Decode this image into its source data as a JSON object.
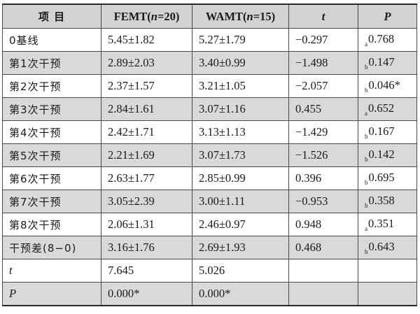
{
  "table": {
    "header": {
      "item": "项 目",
      "femt_prefix": "FEMT(",
      "femt_n": "n",
      "femt_suffix": "=20)",
      "wamt_prefix": "WAMT(",
      "wamt_n": "n",
      "wamt_suffix": "=15)",
      "t": "t",
      "p": "P"
    },
    "rows": [
      {
        "label": "0基线",
        "femt": "5.45±1.82",
        "wamt": "5.27±1.79",
        "t": "−0.297",
        "mark": "a",
        "p": "0.768",
        "shade": false
      },
      {
        "label": "第1次干预",
        "femt": "2.89±2.03",
        "wamt": "3.40±0.99",
        "t": "−1.498",
        "mark": "b",
        "p": "0.147",
        "shade": true
      },
      {
        "label": "第2次干预",
        "femt": "2.37±1.57",
        "wamt": "3.21±1.05",
        "t": "−2.057",
        "mark": "b",
        "p": "0.046*",
        "shade": false
      },
      {
        "label": "第3次干预",
        "femt": "2.84±1.61",
        "wamt": "3.07±1.16",
        "t": "0.455",
        "mark": "a",
        "p": "0.652",
        "shade": true
      },
      {
        "label": "第4次干预",
        "femt": "2.42±1.71",
        "wamt": "3.13±1.13",
        "t": "−1.429",
        "mark": "b",
        "p": "0.167",
        "shade": false
      },
      {
        "label": "第5次干预",
        "femt": "2.21±1.69",
        "wamt": "3.07±1.73",
        "t": "−1.526",
        "mark": "b",
        "p": "0.142",
        "shade": true
      },
      {
        "label": "第6次干预",
        "femt": "2.63±1.77",
        "wamt": "2.85±0.99",
        "t": "0.396",
        "mark": "b",
        "p": "0.695",
        "shade": false
      },
      {
        "label": "第7次干预",
        "femt": "3.05±2.39",
        "wamt": "3.00±1.11",
        "t": "−0.953",
        "mark": "b",
        "p": "0.358",
        "shade": true
      },
      {
        "label": "第8次干预",
        "femt": "2.06±1.31",
        "wamt": "2.46±0.97",
        "t": "0.948",
        "mark": "a",
        "p": "0.351",
        "shade": false
      },
      {
        "label": "干预差(8−0)",
        "femt": "3.16±1.76",
        "wamt": "2.69±1.93",
        "t": "0.468",
        "mark": "b",
        "p": "0.643",
        "shade": true
      }
    ],
    "summary": [
      {
        "label": "t",
        "femt": "7.645",
        "wamt": "5.026",
        "shade": false
      },
      {
        "label": "P",
        "femt": "0.000*",
        "wamt": "0.000*",
        "shade": true
      }
    ]
  }
}
